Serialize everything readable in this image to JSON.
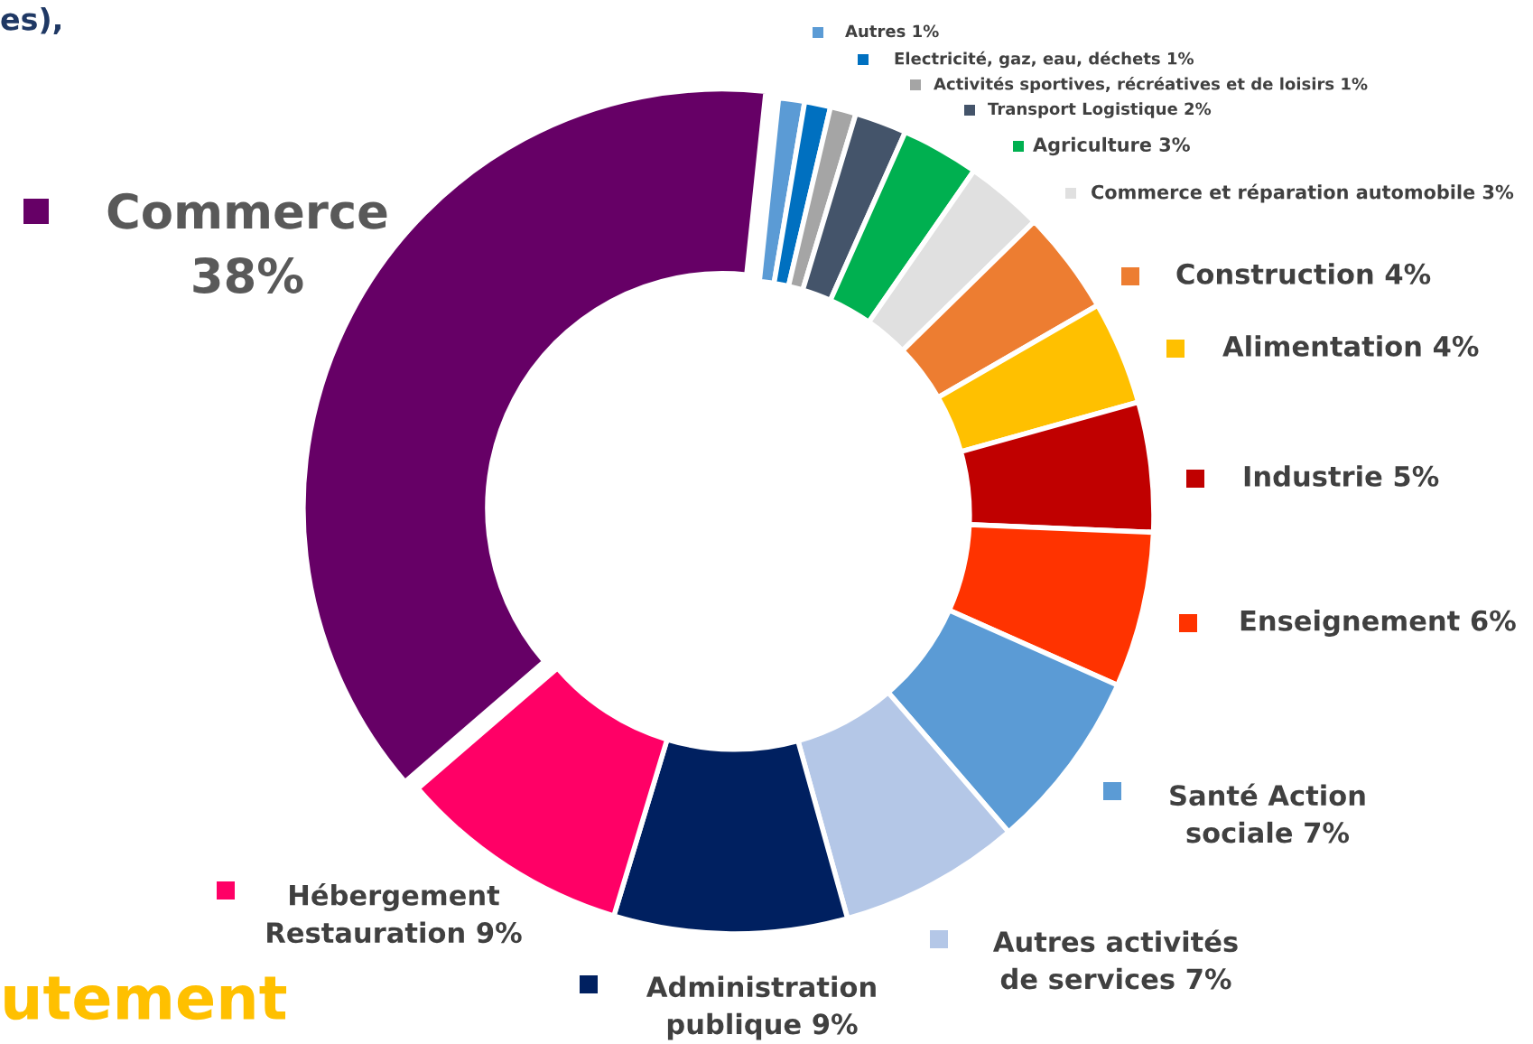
{
  "chart_data": {
    "type": "donut",
    "categories": [
      "Autres",
      "Electricité, gaz, eau, déchets",
      "Activités sportives, récréatives et de loisirs",
      "Transport Logistique",
      "Agriculture",
      "Commerce et réparation automobile",
      "Construction",
      "Alimentation",
      "Industrie",
      "Enseignement",
      "Santé Action\nsociale",
      "Autres activités\nde services",
      "Administration\npublique",
      "Hébergement\nRestauration",
      "Commerce"
    ],
    "values": [
      1,
      1,
      1,
      2,
      3,
      3,
      4,
      4,
      5,
      6,
      7,
      7,
      9,
      9,
      38
    ],
    "colors": [
      "#5b9bd5",
      "#0070c0",
      "#a5a5a5",
      "#44546a",
      "#00b050",
      "#e0e0e0",
      "#ed7d31",
      "#ffc000",
      "#c00000",
      "#ff3300",
      "#5b9bd5",
      "#b4c7e7",
      "#002060",
      "#ff0066",
      "#660066"
    ],
    "value_labels": [
      "1%",
      "1%",
      "1%",
      "2%",
      "3%",
      "3%",
      "4%",
      "4%",
      "5%",
      "6%",
      "7%",
      "7%",
      "9%",
      "9%",
      "38%"
    ],
    "legend": "right",
    "annotations": [
      "es),",
      "utement"
    ]
  }
}
